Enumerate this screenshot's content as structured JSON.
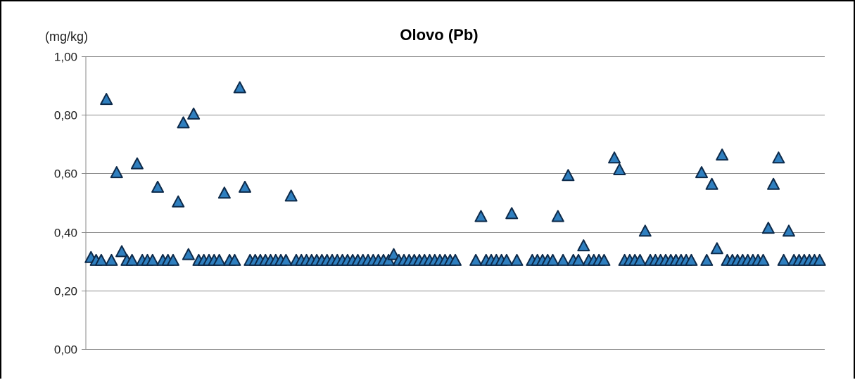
{
  "chart_data": {
    "type": "scatter",
    "title": "Olovo (Pb)",
    "ylabel": "(mg/kg)",
    "xlabel": "",
    "ylim": [
      0,
      1
    ],
    "yticks": [
      0,
      0.2,
      0.4,
      0.6,
      0.8,
      1.0
    ],
    "ytick_labels": [
      "0,00",
      "0,20",
      "0,40",
      "0,60",
      "0,80",
      "1,00"
    ],
    "grid": true,
    "marker": "triangle",
    "marker_color": "#2f7fbf",
    "marker_edge_color": "#0d2a4a",
    "x_range": [
      0,
      144
    ],
    "series": [
      {
        "x": [
          1,
          2,
          3,
          4,
          5,
          6,
          7,
          8,
          9,
          10,
          11,
          12,
          13,
          14,
          15,
          16,
          17,
          18,
          19,
          20,
          21,
          22,
          23,
          24,
          25,
          26,
          27,
          28,
          29,
          30,
          31,
          32,
          33,
          34,
          35,
          36,
          37,
          38,
          39,
          40,
          41,
          42,
          43,
          44,
          45,
          46,
          47,
          48,
          49,
          50,
          51,
          52,
          53,
          54,
          55,
          56,
          57,
          58,
          59,
          60,
          61,
          62,
          63,
          64,
          65,
          66,
          67,
          68,
          69,
          70,
          71,
          72,
          76,
          77,
          78,
          79,
          80,
          81,
          82,
          83,
          84,
          87,
          88,
          89,
          90,
          91,
          92,
          93,
          94,
          95,
          96,
          97,
          98,
          99,
          100,
          101,
          103,
          104,
          105,
          106,
          107,
          108,
          109,
          110,
          111,
          112,
          113,
          114,
          115,
          116,
          117,
          118,
          120,
          121,
          122,
          123,
          124,
          125,
          126,
          127,
          128,
          129,
          130,
          131,
          132,
          133,
          134,
          135,
          136,
          137,
          138,
          139,
          140,
          141,
          142,
          143
        ],
        "y": [
          0.31,
          0.3,
          0.3,
          0.85,
          0.3,
          0.6,
          0.33,
          0.3,
          0.3,
          0.63,
          0.3,
          0.3,
          0.3,
          0.55,
          0.3,
          0.3,
          0.3,
          0.5,
          0.77,
          0.32,
          0.8,
          0.3,
          0.3,
          0.3,
          0.3,
          0.3,
          0.53,
          0.3,
          0.3,
          0.89,
          0.55,
          0.3,
          0.3,
          0.3,
          0.3,
          0.3,
          0.3,
          0.3,
          0.3,
          0.52,
          0.3,
          0.3,
          0.3,
          0.3,
          0.3,
          0.3,
          0.3,
          0.3,
          0.3,
          0.3,
          0.3,
          0.3,
          0.3,
          0.3,
          0.3,
          0.3,
          0.3,
          0.3,
          0.3,
          0.32,
          0.3,
          0.3,
          0.3,
          0.3,
          0.3,
          0.3,
          0.3,
          0.3,
          0.3,
          0.3,
          0.3,
          0.3,
          0.3,
          0.45,
          0.3,
          0.3,
          0.3,
          0.3,
          0.3,
          0.46,
          0.3,
          0.3,
          0.3,
          0.3,
          0.3,
          0.3,
          0.45,
          0.3,
          0.59,
          0.3,
          0.3,
          0.35,
          0.3,
          0.3,
          0.3,
          0.3,
          0.65,
          0.61,
          0.3,
          0.3,
          0.3,
          0.3,
          0.4,
          0.3,
          0.3,
          0.3,
          0.3,
          0.3,
          0.3,
          0.3,
          0.3,
          0.3,
          0.6,
          0.3,
          0.56,
          0.34,
          0.66,
          0.3,
          0.3,
          0.3,
          0.3,
          0.3,
          0.3,
          0.3,
          0.3,
          0.41,
          0.56,
          0.65,
          0.3,
          0.4,
          0.3,
          0.3,
          0.3,
          0.3,
          0.3,
          0.3
        ]
      }
    ]
  }
}
